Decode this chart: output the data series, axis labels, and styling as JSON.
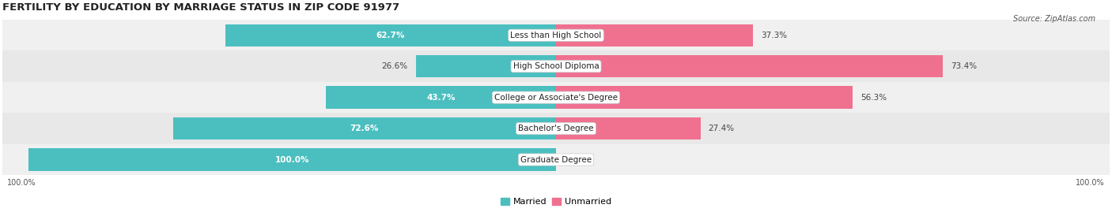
{
  "title": "FERTILITY BY EDUCATION BY MARRIAGE STATUS IN ZIP CODE 91977",
  "source": "Source: ZipAtlas.com",
  "categories": [
    "Less than High School",
    "High School Diploma",
    "College or Associate's Degree",
    "Bachelor's Degree",
    "Graduate Degree"
  ],
  "married_pct": [
    62.7,
    26.6,
    43.7,
    72.6,
    100.0
  ],
  "unmarried_pct": [
    37.3,
    73.4,
    56.3,
    27.4,
    0.0
  ],
  "married_color": "#4bbfbf",
  "unmarried_color": "#f07090",
  "row_bg_even": "#f0f0f0",
  "row_bg_odd": "#e8e8e8",
  "title_fontsize": 9.5,
  "label_fontsize": 7.5,
  "tick_fontsize": 7,
  "source_fontsize": 7,
  "legend_fontsize": 8
}
